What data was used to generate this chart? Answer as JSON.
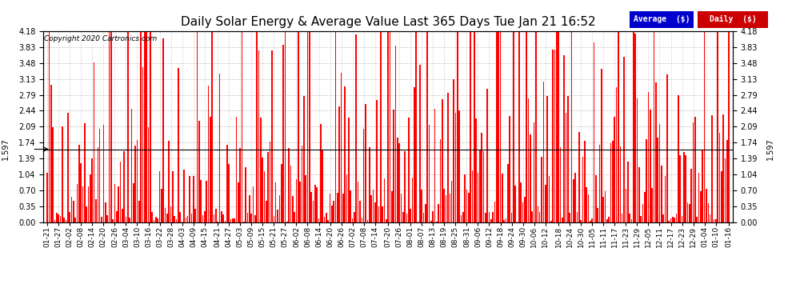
{
  "title": "Daily Solar Energy & Average Value Last 365 Days Tue Jan 21 16:52",
  "copyright": "Copyright 2020 Cartronics.com",
  "average_value": 1.597,
  "average_label": "1.597",
  "ylim": [
    0.0,
    4.18
  ],
  "yticks": [
    0.0,
    0.35,
    0.7,
    1.04,
    1.39,
    1.74,
    2.09,
    2.44,
    2.79,
    3.13,
    3.48,
    3.83,
    4.18
  ],
  "bar_color": "#FF0000",
  "average_line_color": "#000000",
  "background_color": "#FFFFFF",
  "grid_color": "#AAAAAA",
  "legend_avg_bg": "#0000CC",
  "legend_daily_bg": "#CC0000",
  "legend_text_color": "#FFFFFF",
  "x_labels": [
    "01-21",
    "01-27",
    "02-02",
    "02-08",
    "02-14",
    "02-20",
    "02-26",
    "03-04",
    "03-10",
    "03-16",
    "03-22",
    "03-28",
    "04-03",
    "04-09",
    "04-15",
    "04-21",
    "04-27",
    "05-03",
    "05-09",
    "05-15",
    "05-21",
    "05-27",
    "06-02",
    "06-08",
    "06-14",
    "06-20",
    "06-26",
    "07-02",
    "07-08",
    "07-14",
    "07-20",
    "07-26",
    "08-01",
    "08-07",
    "08-13",
    "08-19",
    "08-25",
    "08-31",
    "09-06",
    "09-12",
    "09-18",
    "09-24",
    "09-30",
    "10-06",
    "10-12",
    "10-18",
    "10-24",
    "10-30",
    "11-05",
    "11-11",
    "11-17",
    "11-23",
    "11-29",
    "12-05",
    "12-11",
    "12-17",
    "12-23",
    "12-29",
    "01-04",
    "01-10",
    "01-16"
  ],
  "num_bars": 365,
  "seed": 42,
  "bar_width": 0.7
}
